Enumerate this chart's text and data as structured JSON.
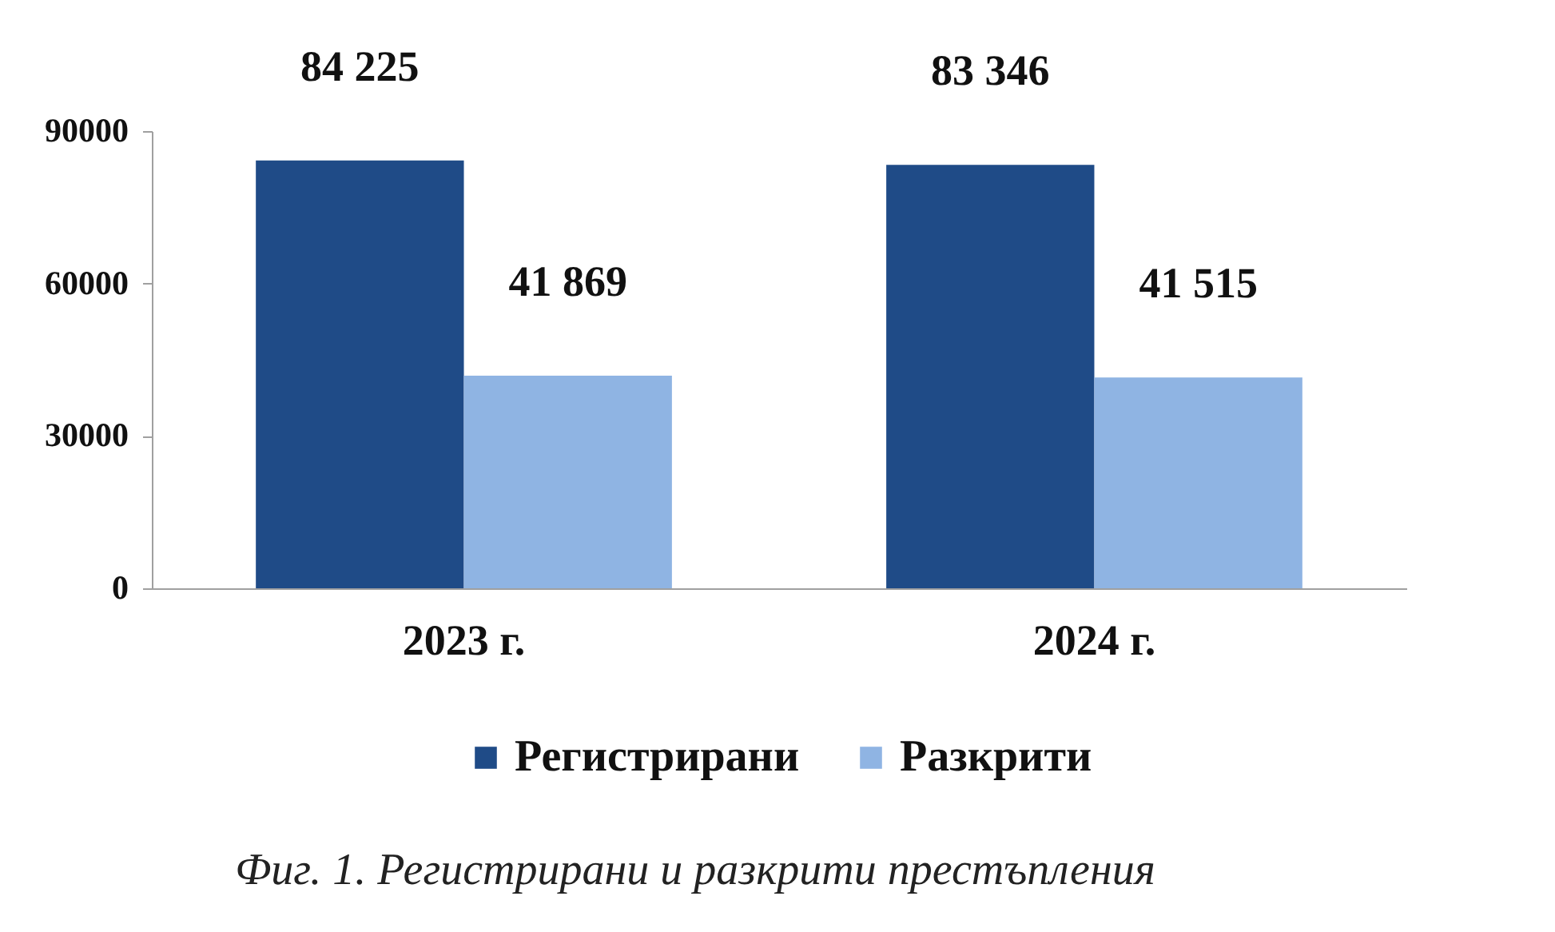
{
  "chart_data": {
    "type": "bar",
    "categories": [
      "2023 г.",
      "2024 г."
    ],
    "series": [
      {
        "name": "Регистрирани",
        "color": "#1f4b87",
        "values": [
          84225,
          83346
        ],
        "value_labels": [
          "84 225",
          "83 346"
        ]
      },
      {
        "name": "Разкрити",
        "color": "#8fb4e3",
        "values": [
          41869,
          41515
        ],
        "value_labels": [
          "41 869",
          "41 515"
        ]
      }
    ],
    "ylim": [
      0,
      90000
    ],
    "yticks": [
      0,
      30000,
      60000,
      90000
    ],
    "legend": "bottom",
    "annotations": [
      "Фиг. 1. Регистрирани и разкрити престъпления"
    ]
  }
}
